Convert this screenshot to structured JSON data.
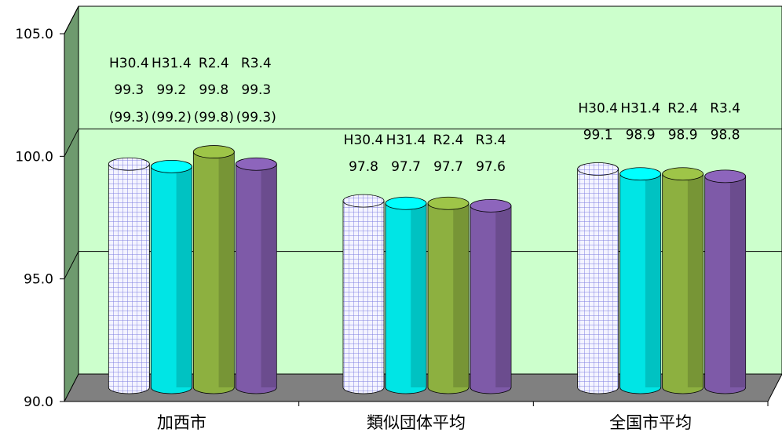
{
  "chart_data": {
    "type": "bar",
    "categories": [
      "加西市",
      "類似団体平均",
      "全国市平均"
    ],
    "series": [
      {
        "name": "H30.4",
        "values": [
          99.3,
          97.8,
          99.1
        ],
        "color": "#b8b8f0"
      },
      {
        "name": "H31.4",
        "values": [
          99.2,
          97.7,
          98.9
        ],
        "color": "#00e5e5"
      },
      {
        "name": "R2.4",
        "values": [
          99.8,
          97.7,
          98.9
        ],
        "color": "#8db040"
      },
      {
        "name": "R3.4",
        "values": [
          99.3,
          97.6,
          98.8
        ],
        "color": "#7e5aa8"
      }
    ],
    "extra_labels": {
      "加西市": [
        "(99.3)",
        "(99.2)",
        "(99.8)",
        "(99.3)"
      ]
    },
    "yticks": [
      "90.0",
      "95.0",
      "100.0",
      "105.0"
    ],
    "ylim": [
      90,
      105
    ],
    "grid": true,
    "wall_color": "#ccffcc",
    "floor_color": "#808080"
  }
}
